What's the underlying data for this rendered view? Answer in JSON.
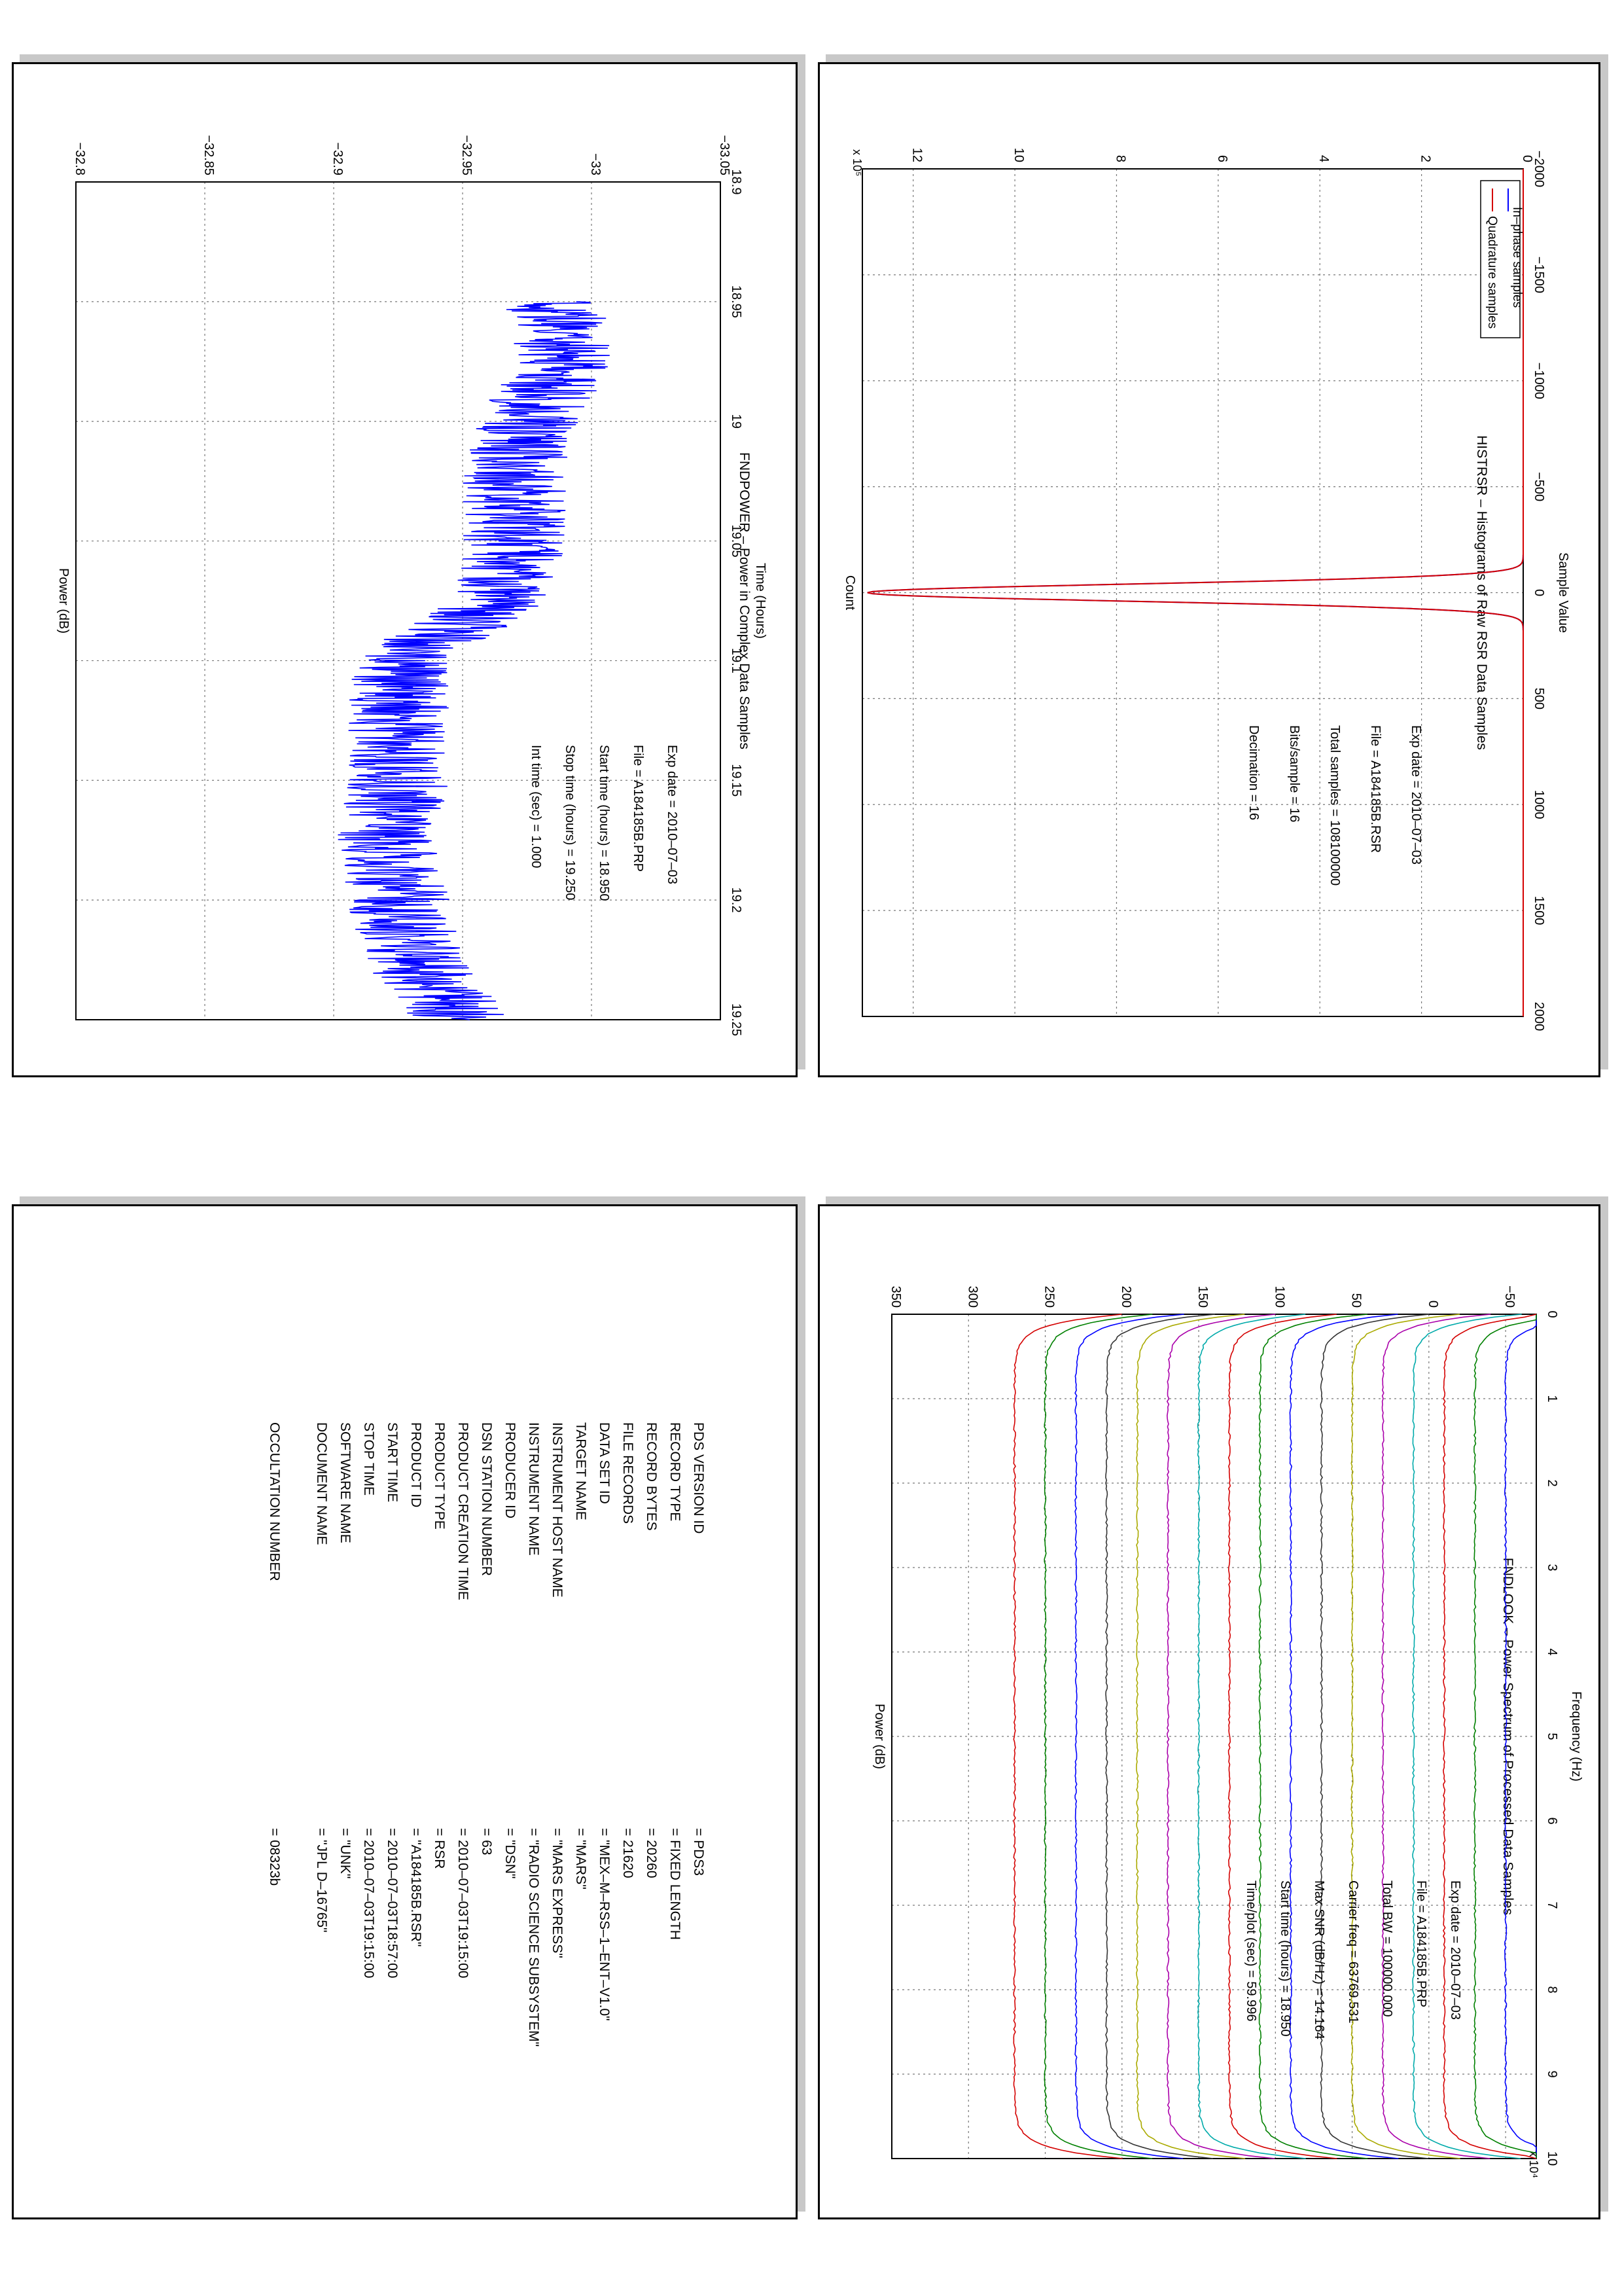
{
  "colors": {
    "inphase": "#0000ff",
    "quadrature": "#d40000",
    "power_line": "#0000ff",
    "grid": "#777777",
    "spectrum_cycle": [
      "#0000ff",
      "#008000",
      "#d40000",
      "#00aaaa",
      "#aa00aa",
      "#aaaa00",
      "#333333"
    ]
  },
  "histogram": {
    "title": "HISTRSR – Histograms of Raw RSR Data Samples",
    "info": [
      "Exp date = 2010–07–03",
      "File = A184185B.RSR",
      "Total samples =  108100000",
      "Bits/sample    =        16",
      "Decimation     =        16"
    ],
    "legend": [
      "In–phase samples",
      "Quadrature samples"
    ],
    "exponent": "x 10⁵"
  },
  "power": {
    "title": "FNDPOWER – Power in Complex Data Samples",
    "info": [
      "Exp date = 2010–07–03",
      "File = A184185B.PRP",
      "Start time (hours) = 18.950",
      "Stop time (hours)  =  19.250",
      "Int time (sec)  =     1.000"
    ]
  },
  "spectrum": {
    "title": "FNDLOOK – Power Spectrum of Processed Data Samples",
    "info": [
      "Exp date = 2010–07–03",
      "File = A184185B.PRP",
      "Total BW =    100000.000",
      "Carrier freq =   63769.531",
      "Max SNR (dB/Hz) =    14.164",
      "Start time (hours) =   18.950",
      "Time/plot (sec) =      59.996"
    ],
    "exponent": "x 10⁴"
  },
  "label": {
    "rows": [
      [
        "PDS VERSION ID",
        "= PDS3"
      ],
      [
        "RECORD TYPE",
        "= FIXED LENGTH"
      ],
      [
        "RECORD BYTES",
        "= 20260"
      ],
      [
        "FILE RECORDS",
        "= 21620"
      ],
      [
        "DATA SET ID",
        "= \"MEX–M–RSS–1–ENT–V1.0\""
      ],
      [
        "TARGET NAME",
        "= \"MARS\""
      ],
      [
        "INSTRUMENT HOST NAME",
        "= \"MARS EXPRESS\""
      ],
      [
        "INSTRUMENT NAME",
        "= \"RADIO SCIENCE SUBSYSTEM\""
      ],
      [
        "PRODUCER ID",
        "= \"DSN\""
      ],
      [
        "DSN STATION NUMBER",
        "= 63"
      ],
      [
        "PRODUCT CREATION TIME",
        "= 2010–07–03T19:15:00"
      ],
      [
        "PRODUCT TYPE",
        "= RSR"
      ],
      [
        "PRODUCT ID",
        "= \"A184185B.RSR\""
      ],
      [
        "START TIME",
        "= 2010–07–03T18:57:00"
      ],
      [
        "STOP TIME",
        "= 2010–07–03T19:15:00"
      ],
      [
        "SOFTWARE NAME",
        "= \"UNK\""
      ],
      [
        "DOCUMENT NAME",
        "= \"JPL D–16765\""
      ],
      [
        "OCCULTATION NUMBER",
        "= 08323b"
      ]
    ]
  },
  "chart_data": [
    {
      "type": "line",
      "title": "HISTRSR – Histograms of Raw RSR Data Samples",
      "xlabel": "Sample Value",
      "ylabel": "Count",
      "xlim": [
        -2000,
        2000
      ],
      "ylim": [
        0,
        13
      ],
      "y_scale_note": "x 10^5",
      "xticks": [
        "−2000",
        "−1500",
        "−1000",
        "−500",
        "0",
        "500",
        "1000",
        "1500",
        "2000"
      ],
      "yticks": [
        "0",
        "2",
        "4",
        "6",
        "8",
        "10",
        "12"
      ],
      "grid": true,
      "legend": "top-left",
      "series": [
        {
          "name": "In–phase samples",
          "center": 0,
          "peak": 12.9,
          "sigma": 40
        },
        {
          "name": "Quadrature samples",
          "center": 0,
          "peak": 12.9,
          "sigma": 40
        }
      ]
    },
    {
      "type": "line",
      "title": "FNDPOWER – Power in Complex Data Samples",
      "xlabel": "Time (Hours)",
      "ylabel": "Power (dB)",
      "xlim": [
        18.9,
        19.25
      ],
      "ylim": [
        -33.05,
        -32.8
      ],
      "xticks": [
        "18.9",
        "18.95",
        "19",
        "19.05",
        "19.1",
        "19.15",
        "19.2",
        "19.25"
      ],
      "yticks": [
        "−33.05",
        "−33",
        "−32.95",
        "−32.9",
        "−32.85",
        "−32.8"
      ],
      "grid": true,
      "series": [
        {
          "name": "",
          "x": [
            18.95,
            18.975,
            19.0,
            19.025,
            19.05,
            19.075,
            19.1,
            19.125,
            19.15,
            19.175,
            19.2,
            19.225,
            19.25
          ],
          "y": [
            -32.985,
            -32.99,
            -32.975,
            -32.97,
            -32.97,
            -32.965,
            -32.925,
            -32.925,
            -32.925,
            -32.92,
            -32.925,
            -32.93,
            -32.95
          ]
        }
      ]
    },
    {
      "type": "line",
      "title": "FNDLOOK – Power Spectrum of Processed Data Samples",
      "xlabel": "Frequency (Hz)",
      "ylabel": "Power (dB)",
      "xlim": [
        0,
        10
      ],
      "ylim": [
        -70,
        350
      ],
      "x_scale_note": "x 10^4",
      "xticks": [
        "0",
        "1",
        "2",
        "3",
        "4",
        "5",
        "6",
        "7",
        "8",
        "9",
        "10"
      ],
      "yticks": [
        "−50",
        "0",
        "50",
        "100",
        "150",
        "200",
        "250",
        "300",
        "350"
      ],
      "grid": true,
      "series_offsets": [
        -50,
        -30,
        -10,
        10,
        30,
        50,
        70,
        90,
        110,
        130,
        150,
        170,
        190,
        210,
        230,
        250,
        270
      ]
    }
  ]
}
